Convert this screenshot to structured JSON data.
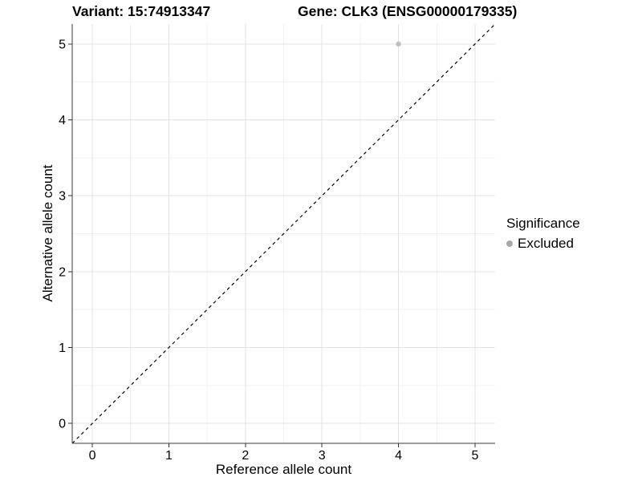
{
  "chart_data": {
    "type": "scatter",
    "title_left": "Variant: 15:74913347",
    "title_right": "Gene: CLK3 (ENSG00000179335)",
    "xlabel": "Reference allele count",
    "ylabel": "Alternative allele count",
    "xlim": [
      -0.2625,
      5.2625
    ],
    "ylim": [
      -0.2625,
      5.2625
    ],
    "x_ticks": [
      0,
      1,
      2,
      3,
      4,
      5
    ],
    "y_ticks": [
      0,
      1,
      2,
      3,
      4,
      5
    ],
    "x_minor_ticks": [
      0.5,
      1.5,
      2.5,
      3.5,
      4.5
    ],
    "y_minor_ticks": [
      0.5,
      1.5,
      2.5,
      3.5,
      4.5
    ],
    "grid": true,
    "series": [
      {
        "name": "Excluded",
        "color": "#bfbfbf",
        "points": [
          {
            "x": 4,
            "y": 5
          }
        ]
      }
    ],
    "reference_line": {
      "type": "identity",
      "style": "dashed",
      "color": "#000000"
    },
    "legend": {
      "title": "Significance",
      "position": "right",
      "entries": [
        {
          "label": "Excluded",
          "color": "#a9a9a9"
        }
      ]
    },
    "colors": {
      "background": "#ffffff",
      "grid_major": "#e3e3e3",
      "grid_minor": "#f0f0f0",
      "axis_line": "#3a3a3a",
      "tick_mark": "#333333",
      "text": "#000000"
    }
  }
}
